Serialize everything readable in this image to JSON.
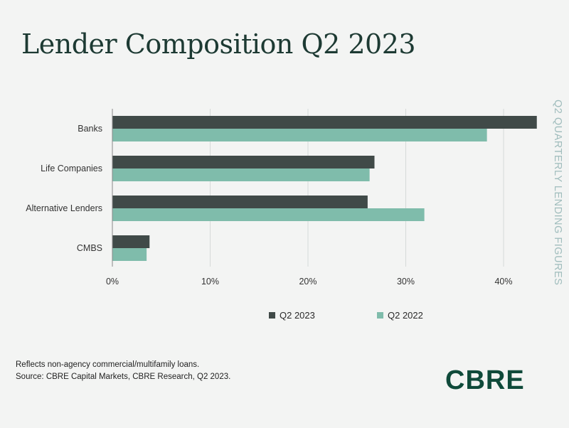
{
  "title": "Lender Composition Q2 2023",
  "side_label": "Q2 QUARTERLY LENDING FIGURES",
  "notes": [
    "Reflects non-agency commercial/multifamily loans.",
    "Source: CBRE Capital Markets, CBRE Research, Q2 2023."
  ],
  "logo": "CBRE",
  "colors": {
    "q2_2023": "#404a48",
    "q2_2022": "#7fbcab",
    "grid": "#d6dad8"
  },
  "chart_data": {
    "type": "bar",
    "orientation": "horizontal",
    "categories": [
      "Banks",
      "Life Companies",
      "Alternative Lenders",
      "CMBS"
    ],
    "series": [
      {
        "name": "Q2 2023",
        "values": [
          43.4,
          26.8,
          26.1,
          3.8
        ]
      },
      {
        "name": "Q2 2022",
        "values": [
          38.3,
          26.3,
          31.9,
          3.5
        ]
      }
    ],
    "x_ticks": [
      "0%",
      "10%",
      "20%",
      "30%",
      "40%"
    ],
    "xlim": [
      0,
      43.5
    ],
    "grid": true,
    "legend_position": "bottom"
  }
}
